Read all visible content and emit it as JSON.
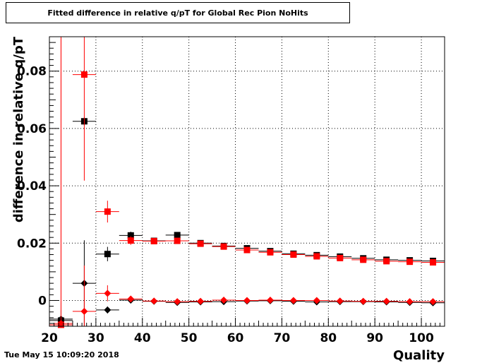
{
  "title": "Fitted difference in relative q/pT for Global Rec Pion NoHits",
  "timestamp": "Tue May 15 10:09:20 2018",
  "chart_data": {
    "type": "scatter",
    "xlabel": "Quality",
    "ylabel": "difference in relative q/pT",
    "xlim": [
      20,
      105
    ],
    "ylim": [
      -0.009,
      0.092
    ],
    "grid": true,
    "x_ticks": [
      20,
      30,
      40,
      50,
      60,
      70,
      80,
      90,
      100
    ],
    "y_ticks": [
      0,
      0.02,
      0.04,
      0.06,
      0.08
    ],
    "x_tick_labels": [
      "20",
      "30",
      "40",
      "50",
      "60",
      "70",
      "80",
      "90",
      "100"
    ],
    "y_tick_labels": [
      "0",
      "0.02",
      "0.04",
      "0.06",
      "0.08"
    ],
    "series": [
      {
        "marker": "square",
        "color": "#000000",
        "x": [
          22.5,
          27.5,
          32.5,
          37.5,
          42.5,
          47.5,
          52.5,
          57.5,
          62.5,
          67.5,
          72.5,
          77.5,
          82.5,
          87.5,
          92.5,
          97.5,
          102.5
        ],
        "y": [
          -0.007,
          0.0625,
          0.0162,
          0.0227,
          0.0208,
          0.0228,
          0.02,
          0.019,
          0.0182,
          0.0172,
          0.0163,
          0.0158,
          0.0153,
          0.0147,
          0.0142,
          0.014,
          0.0138
        ],
        "yerr": [
          0.002,
          0.0015,
          0.0025,
          0.0013,
          0.0008,
          0.0008,
          0.0006,
          0.0005,
          0.0005,
          0.0005,
          0.0005,
          0.0004,
          0.0004,
          0.0004,
          0.0004,
          0.0004,
          0.0004
        ]
      },
      {
        "marker": "square",
        "color": "#ff0000",
        "x": [
          22.5,
          27.5,
          32.5,
          37.5,
          42.5,
          47.5,
          52.5,
          57.5,
          62.5,
          67.5,
          72.5,
          77.5,
          82.5,
          87.5,
          92.5,
          97.5,
          102.5
        ],
        "y": [
          -0.0085,
          0.0788,
          0.031,
          0.0209,
          0.0207,
          0.0208,
          0.0198,
          0.0188,
          0.0176,
          0.0168,
          0.016,
          0.0154,
          0.0148,
          0.0142,
          0.0137,
          0.0135,
          0.0133
        ],
        "yerr": [
          0.1,
          0.037,
          0.0038,
          0.0015,
          0.0008,
          0.0007,
          0.0006,
          0.0005,
          0.0005,
          0.0005,
          0.0005,
          0.0004,
          0.0004,
          0.0004,
          0.0004,
          0.0004,
          0.0004
        ]
      },
      {
        "marker": "diamond",
        "color": "#000000",
        "x": [
          22.5,
          27.5,
          32.5,
          37.5,
          42.5,
          47.5,
          52.5,
          57.5,
          62.5,
          67.5,
          72.5,
          77.5,
          82.5,
          87.5,
          92.5,
          97.5,
          102.5
        ],
        "y": [
          -0.0065,
          0.006,
          -0.0033,
          0.0001,
          -0.0003,
          -0.0007,
          -0.0005,
          -0.0004,
          -0.0002,
          -0.0001,
          -0.0003,
          -0.0005,
          -0.0004,
          -0.0004,
          -0.0005,
          -0.0007,
          -0.0008
        ],
        "yerr": [
          0.003,
          0.015,
          0.0012,
          0.0008,
          0.0005,
          0.0005,
          0.0004,
          0.0003,
          0.0003,
          0.0003,
          0.0003,
          0.0003,
          0.0003,
          0.0003,
          0.0003,
          0.0003,
          0.0003
        ]
      },
      {
        "marker": "diamond",
        "color": "#ff0000",
        "x": [
          22.5,
          27.5,
          32.5,
          37.5,
          42.5,
          47.5,
          52.5,
          57.5,
          62.5,
          67.5,
          72.5,
          77.5,
          82.5,
          87.5,
          92.5,
          97.5,
          102.5
        ],
        "y": [
          -0.008,
          -0.0038,
          0.0025,
          0.0005,
          -0.0002,
          -0.0004,
          -0.0003,
          0.0001,
          0.0,
          0.0001,
          0.0,
          0.0,
          -0.0002,
          -0.0003,
          -0.0003,
          -0.0004,
          -0.0004
        ],
        "yerr": [
          0.1,
          0.016,
          0.0028,
          0.0008,
          0.0005,
          0.0005,
          0.0004,
          0.0003,
          0.0003,
          0.0003,
          0.0003,
          0.0003,
          0.0003,
          0.0003,
          0.0003,
          0.0003,
          0.0003
        ]
      }
    ]
  }
}
